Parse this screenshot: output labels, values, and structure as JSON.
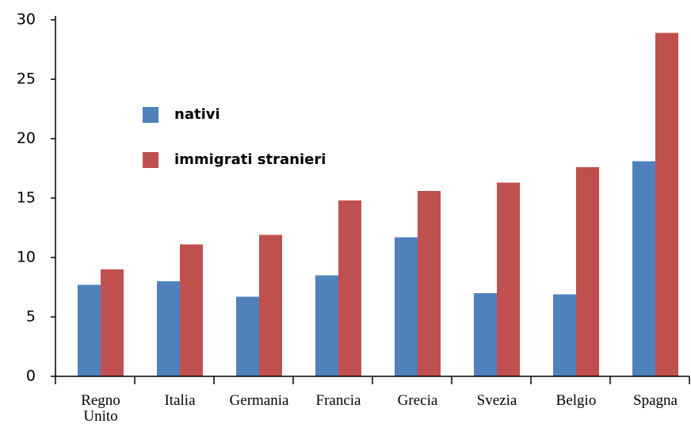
{
  "chart_data": {
    "type": "bar",
    "categories": [
      "Regno Unito",
      "Italia",
      "Germania",
      "Francia",
      "Grecia",
      "Svezia",
      "Belgio",
      "Spagna"
    ],
    "series": [
      {
        "name": "nativi",
        "color": "#4f81bd",
        "values": [
          7.7,
          8.0,
          6.7,
          8.5,
          11.7,
          7.0,
          6.9,
          18.1
        ]
      },
      {
        "name": "immigrati stranieri",
        "color": "#c0504d",
        "values": [
          9.0,
          11.1,
          11.9,
          14.8,
          15.6,
          16.3,
          17.6,
          28.9
        ]
      }
    ],
    "ylim": [
      0,
      30
    ],
    "yticks": [
      0,
      5,
      10,
      15,
      20,
      25,
      30
    ]
  }
}
